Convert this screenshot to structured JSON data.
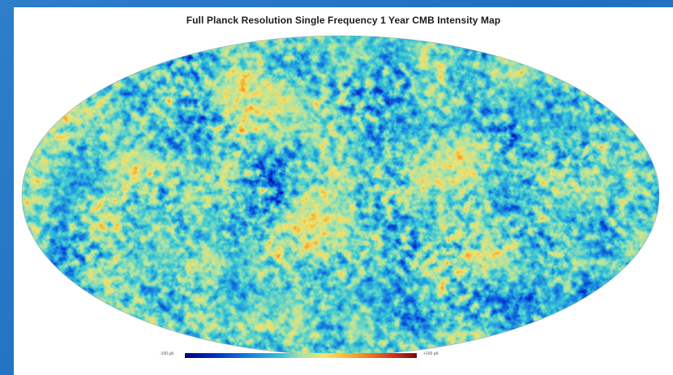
{
  "map": {
    "title": "Full Planck Resolution Single Frequency 1 Year CMB Intensity Map",
    "projection": "mollweide",
    "colormap": [
      "#00007a",
      "#0033cc",
      "#1a7fe0",
      "#38c6d6",
      "#a8e2a8",
      "#f3e36a",
      "#f5a02c",
      "#d8401c",
      "#7a0a06"
    ]
  },
  "colorbar": {
    "min_label": "-100 µK",
    "max_label": "+100 µK"
  },
  "theme": {
    "slide_background": "#2376c6",
    "panel_background": "#ffffff"
  }
}
